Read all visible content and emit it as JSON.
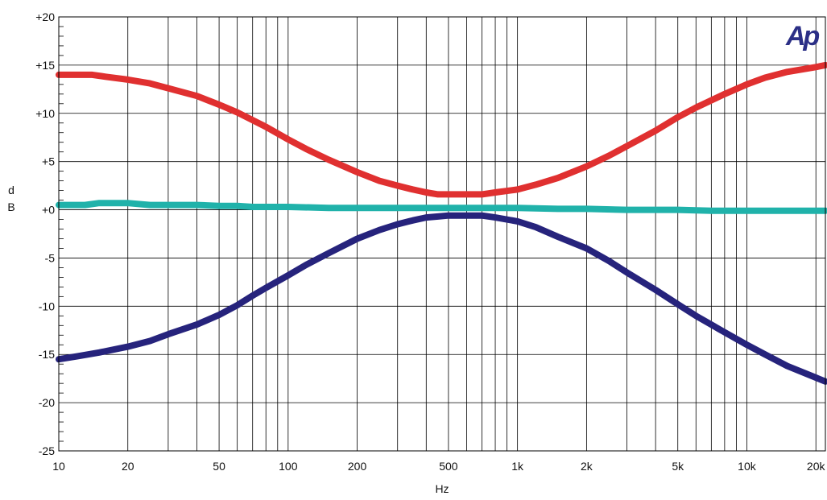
{
  "logo_text": "Ap",
  "chart_data": {
    "type": "line",
    "xlabel": "Hz",
    "ylabel": "dB",
    "xscale": "log",
    "xlim": [
      10,
      22000
    ],
    "ylim": [
      -25,
      20
    ],
    "grid": true,
    "x_ticks": [
      {
        "v": 10,
        "label": "10"
      },
      {
        "v": 20,
        "label": "20"
      },
      {
        "v": 50,
        "label": "50"
      },
      {
        "v": 100,
        "label": "100"
      },
      {
        "v": 200,
        "label": "200"
      },
      {
        "v": 500,
        "label": "500"
      },
      {
        "v": 1000,
        "label": "1k"
      },
      {
        "v": 2000,
        "label": "2k"
      },
      {
        "v": 5000,
        "label": "5k"
      },
      {
        "v": 10000,
        "label": "10k"
      },
      {
        "v": 20000,
        "label": "20k"
      }
    ],
    "y_ticks": [
      {
        "v": 20,
        "label": "+20"
      },
      {
        "v": 15,
        "label": "+15"
      },
      {
        "v": 10,
        "label": "+10"
      },
      {
        "v": 5,
        "label": "+5"
      },
      {
        "v": 0,
        "label": "+0"
      },
      {
        "v": -5,
        "label": "-5"
      },
      {
        "v": -10,
        "label": "-10"
      },
      {
        "v": -15,
        "label": "-15"
      },
      {
        "v": -20,
        "label": "-20"
      },
      {
        "v": -25,
        "label": "-25"
      }
    ],
    "series": [
      {
        "color": "#e03030",
        "x": [
          10,
          12,
          14,
          16,
          20,
          25,
          30,
          40,
          50,
          60,
          70,
          80,
          100,
          120,
          150,
          200,
          250,
          300,
          350,
          400,
          450,
          500,
          600,
          700,
          800,
          1000,
          1200,
          1500,
          2000,
          2500,
          3000,
          4000,
          5000,
          6000,
          8000,
          10000,
          12000,
          15000,
          20000,
          22000
        ],
        "y": [
          14,
          14,
          14,
          13.8,
          13.5,
          13.1,
          12.6,
          11.8,
          10.9,
          10.1,
          9.3,
          8.6,
          7.3,
          6.3,
          5.2,
          3.9,
          3.0,
          2.5,
          2.1,
          1.8,
          1.6,
          1.6,
          1.6,
          1.6,
          1.8,
          2.1,
          2.6,
          3.3,
          4.5,
          5.6,
          6.6,
          8.2,
          9.6,
          10.6,
          12.0,
          13.0,
          13.7,
          14.3,
          14.8,
          15.0
        ]
      },
      {
        "color": "#20b2aa",
        "x": [
          10,
          13,
          15,
          18,
          20,
          25,
          30,
          40,
          50,
          60,
          70,
          100,
          150,
          200,
          300,
          500,
          700,
          1000,
          1500,
          2000,
          3000,
          5000,
          7000,
          10000,
          15000,
          22000
        ],
        "y": [
          0.5,
          0.5,
          0.7,
          0.7,
          0.7,
          0.5,
          0.5,
          0.5,
          0.4,
          0.4,
          0.3,
          0.3,
          0.2,
          0.2,
          0.2,
          0.2,
          0.2,
          0.2,
          0.1,
          0.1,
          0.0,
          0.0,
          -0.1,
          -0.1,
          -0.1,
          -0.1
        ]
      },
      {
        "color": "#26237c",
        "x": [
          10,
          12,
          15,
          20,
          25,
          30,
          40,
          50,
          60,
          70,
          80,
          100,
          120,
          150,
          200,
          250,
          300,
          350,
          400,
          450,
          500,
          600,
          700,
          800,
          1000,
          1200,
          1500,
          2000,
          2500,
          3000,
          4000,
          5000,
          6000,
          8000,
          10000,
          12000,
          15000,
          20000,
          22000
        ],
        "y": [
          -15.5,
          -15.2,
          -14.8,
          -14.2,
          -13.6,
          -12.9,
          -11.9,
          -10.9,
          -9.9,
          -8.9,
          -8.1,
          -6.8,
          -5.7,
          -4.5,
          -3.0,
          -2.1,
          -1.5,
          -1.1,
          -0.8,
          -0.7,
          -0.6,
          -0.6,
          -0.6,
          -0.8,
          -1.2,
          -1.8,
          -2.8,
          -4.0,
          -5.3,
          -6.5,
          -8.3,
          -9.8,
          -11.0,
          -12.7,
          -14.0,
          -15.0,
          -16.2,
          -17.4,
          -17.8
        ]
      }
    ]
  }
}
